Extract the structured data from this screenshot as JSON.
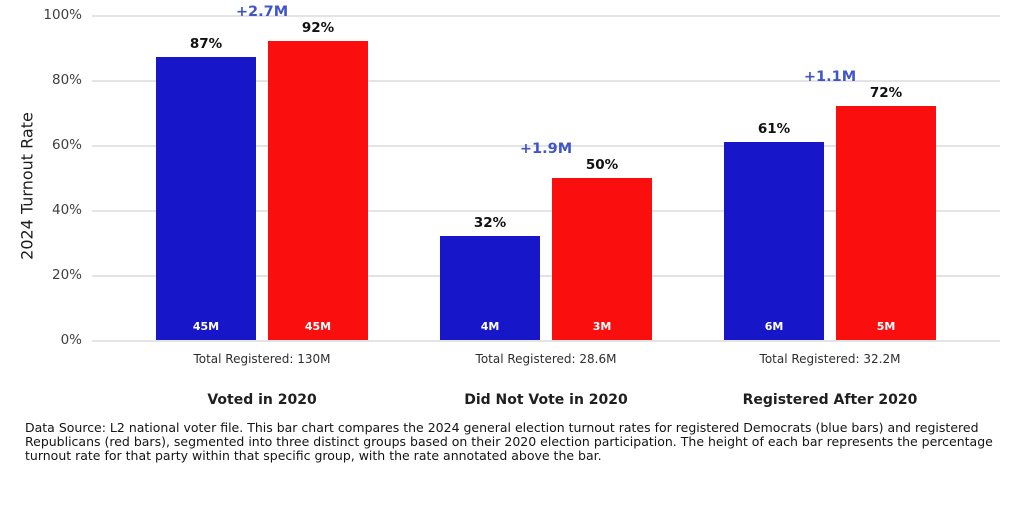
{
  "colors": {
    "dem": "#1717c9",
    "rep": "#fa0e0e",
    "annotation": "#4156c6",
    "gridline": "#e4e4e8"
  },
  "chart_data": {
    "type": "bar",
    "title": "",
    "xlabel": "",
    "ylabel": "2024 Turnout Rate",
    "ylim": [
      0,
      100
    ],
    "grid": true,
    "legend": "none",
    "yticks": [
      "0%",
      "20%",
      "40%",
      "60%",
      "80%",
      "100%"
    ],
    "categories": [
      "Voted in 2020",
      "Did Not Vote in 2020",
      "Registered After 2020"
    ],
    "series": [
      {
        "name": "Democrats (blue bars)",
        "color": "#1717c9",
        "values": [
          87,
          32,
          61
        ],
        "bar_counts": [
          "45M",
          "4M",
          "6M"
        ]
      },
      {
        "name": "Republicans (red bars)",
        "color": "#fa0e0e",
        "values": [
          92,
          50,
          72
        ],
        "bar_counts": [
          "45M",
          "3M",
          "5M"
        ]
      }
    ],
    "groups": [
      {
        "label": "Voted in 2020",
        "total": "Total Registered: 130M",
        "diff": "+2.7M",
        "dem": {
          "rate": 87,
          "rate_label": "87%",
          "count": "45M"
        },
        "rep": {
          "rate": 92,
          "rate_label": "92%",
          "count": "45M"
        }
      },
      {
        "label": "Did Not Vote in 2020",
        "total": "Total Registered: 28.6M",
        "diff": "+1.9M",
        "dem": {
          "rate": 32,
          "rate_label": "32%",
          "count": "4M"
        },
        "rep": {
          "rate": 50,
          "rate_label": "50%",
          "count": "3M"
        }
      },
      {
        "label": "Registered After 2020",
        "total": "Total Registered: 32.2M",
        "diff": "+1.1M",
        "dem": {
          "rate": 61,
          "rate_label": "61%",
          "count": "6M"
        },
        "rep": {
          "rate": 72,
          "rate_label": "72%",
          "count": "5M"
        }
      }
    ]
  },
  "caption": "Data Source: L2 national voter file. This bar chart compares the 2024 general election turnout rates for registered Democrats (blue bars) and registered Republicans (red bars), segmented into three distinct groups based on their 2020 election participation. The height of each bar represents the percentage turnout rate for that party within that specific group, with the rate annotated above the bar."
}
